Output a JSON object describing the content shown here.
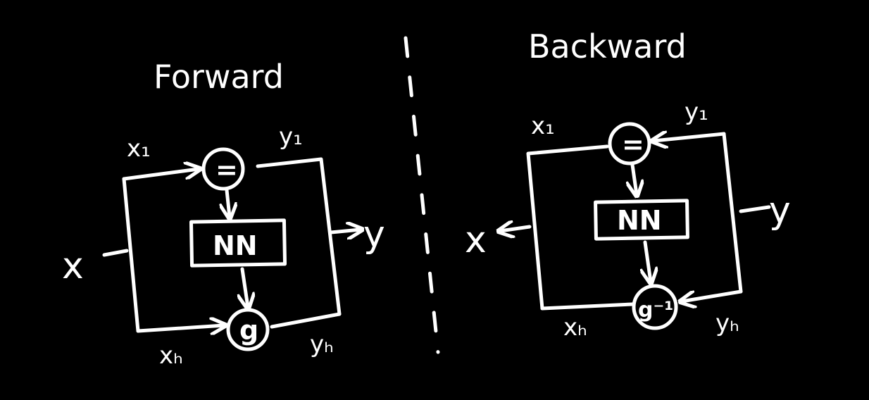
{
  "forward": {
    "title": "Forward",
    "input": "x",
    "output": "y",
    "split_top": "x₁",
    "split_bottom": "xₕ",
    "out_top": "y₁",
    "out_bottom": "yₕ",
    "nn": "NN",
    "identity": "=",
    "couple": "g"
  },
  "backward": {
    "title": "Backward",
    "input": "y",
    "output": "x",
    "split_top": "x₁",
    "split_bottom": "xₕ",
    "out_top": "y₁",
    "out_bottom": "yₕ",
    "nn": "NN",
    "identity": "=",
    "couple": "g⁻¹"
  },
  "colors": {
    "background": "#000000",
    "ink": "#ffffff"
  }
}
